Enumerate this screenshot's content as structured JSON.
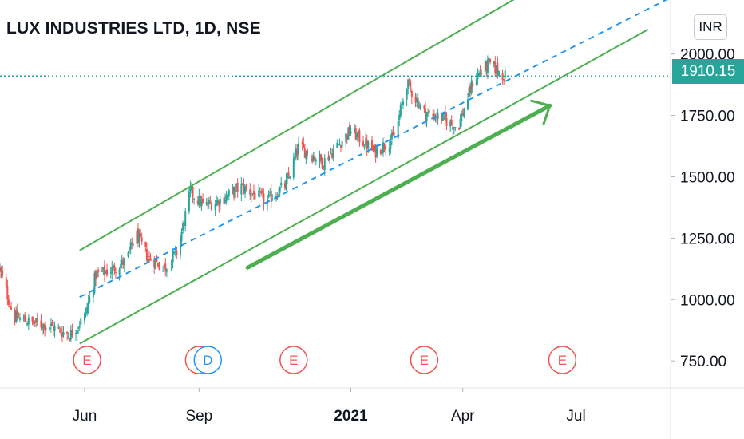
{
  "title": "LUX INDUSTRIES LTD, 1D, NSE",
  "currency_badge": "INR",
  "last_price_label": "1910.15",
  "colors": {
    "up": "#26a69a",
    "down": "#ef5350",
    "channel": "#4caf50",
    "midline": "#2196f3",
    "earnings": "#ef5350",
    "dividend": "#2196f3",
    "axis_text": "#131722"
  },
  "chart_data": {
    "type": "candlestick",
    "symbol": "LUX INDUSTRIES LTD",
    "interval": "1D",
    "exchange": "NSE",
    "currency": "INR",
    "last_price": 1910.15,
    "y_ticks": [
      "750.00",
      "1000.00",
      "1250.00",
      "1500.00",
      "1750.00",
      "2000.00"
    ],
    "x_ticks": [
      {
        "label": "Jun",
        "date": "2020-06-01",
        "bold": false
      },
      {
        "label": "Sep",
        "date": "2020-09-01",
        "bold": false
      },
      {
        "label": "2021",
        "date": "2021-01-01",
        "bold": true
      },
      {
        "label": "Apr",
        "date": "2021-04-01",
        "bold": false
      },
      {
        "label": "Jul",
        "date": "2021-07-01",
        "bold": false
      }
    ],
    "ylim": [
      640,
      2220
    ],
    "xlim": [
      "2020-03-25",
      "2021-09-15"
    ],
    "price_path": [
      [
        "2020-03-25",
        1120
      ],
      [
        "2020-04-05",
        930
      ],
      [
        "2020-04-20",
        905
      ],
      [
        "2020-05-05",
        890
      ],
      [
        "2020-05-20",
        855
      ],
      [
        "2020-06-01",
        930
      ],
      [
        "2020-06-10",
        1100
      ],
      [
        "2020-06-22",
        1120
      ],
      [
        "2020-07-05",
        1160
      ],
      [
        "2020-07-12",
        1270
      ],
      [
        "2020-07-22",
        1170
      ],
      [
        "2020-08-05",
        1130
      ],
      [
        "2020-08-15",
        1200
      ],
      [
        "2020-08-25",
        1440
      ],
      [
        "2020-09-05",
        1380
      ],
      [
        "2020-09-20",
        1410
      ],
      [
        "2020-10-05",
        1460
      ],
      [
        "2020-10-25",
        1400
      ],
      [
        "2020-11-10",
        1470
      ],
      [
        "2020-11-20",
        1620
      ],
      [
        "2020-12-10",
        1560
      ],
      [
        "2021-01-01",
        1690
      ],
      [
        "2021-01-20",
        1600
      ],
      [
        "2021-02-05",
        1660
      ],
      [
        "2021-02-15",
        1880
      ],
      [
        "2021-03-01",
        1760
      ],
      [
        "2021-03-15",
        1740
      ],
      [
        "2021-03-28",
        1700
      ],
      [
        "2021-04-10",
        1900
      ],
      [
        "2021-04-22",
        1960
      ],
      [
        "2021-05-05",
        1910
      ]
    ],
    "channel": {
      "upper": {
        "from": [
          "2020-05-28",
          1200
        ],
        "to": [
          "2021-05-25",
          2260
        ]
      },
      "lower": {
        "from": [
          "2020-05-28",
          820
        ],
        "to": [
          "2021-08-28",
          2100
        ]
      },
      "mid_dashed": {
        "from": [
          "2020-05-28",
          1010
        ],
        "to": [
          "2021-09-15",
          2230
        ]
      }
    },
    "trend_arrow": {
      "from": [
        "2020-10-10",
        1130
      ],
      "to": [
        "2021-06-10",
        1790
      ]
    },
    "events": [
      {
        "type": "earnings",
        "letter": "E",
        "date": "2020-06-03"
      },
      {
        "type": "earnings",
        "letter": "E",
        "date": "2020-09-01"
      },
      {
        "type": "dividend",
        "letter": "D",
        "date": "2020-09-08"
      },
      {
        "type": "earnings",
        "letter": "E",
        "date": "2020-11-16"
      },
      {
        "type": "earnings",
        "letter": "E",
        "date": "2021-03-01"
      },
      {
        "type": "earnings",
        "letter": "E",
        "date": "2021-06-20"
      }
    ]
  }
}
